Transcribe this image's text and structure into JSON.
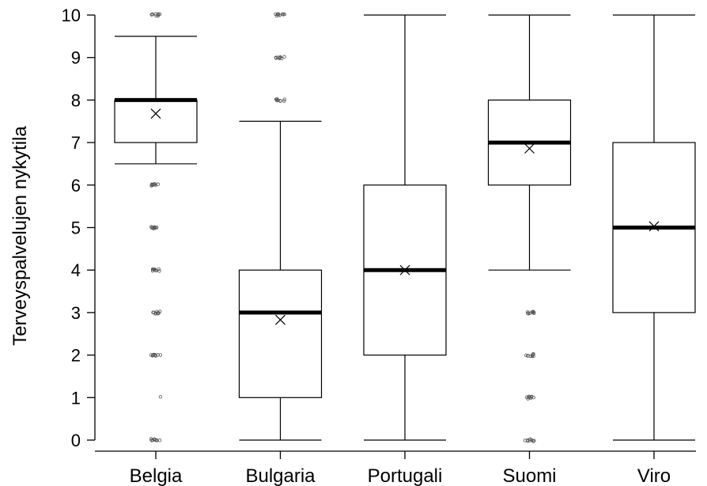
{
  "chart_data": {
    "type": "boxplot",
    "title": "",
    "xlabel": "",
    "ylabel": "Terveyspalvelujen nykytila",
    "ylim": [
      0,
      10
    ],
    "yticks": [
      "0",
      "1",
      "2",
      "3",
      "4",
      "5",
      "6",
      "7",
      "8",
      "9",
      "10"
    ],
    "grid": false,
    "legend": "none",
    "categories": [
      "Belgia",
      "Bulgaria",
      "Portugali",
      "Suomi",
      "Viro"
    ],
    "boxes": [
      {
        "category": "Belgia",
        "whisker_low": 6.5,
        "q1": 7,
        "median": 8,
        "q3": 8,
        "whisker_high": 9.5,
        "mean": 7.68,
        "outliers": [
          0,
          1,
          2,
          3,
          4,
          5,
          6,
          10
        ]
      },
      {
        "category": "Bulgaria",
        "whisker_low": 0,
        "q1": 1,
        "median": 3,
        "q3": 4,
        "whisker_high": 7.5,
        "mean": 2.83,
        "outliers": [
          8,
          9,
          10
        ]
      },
      {
        "category": "Portugali",
        "whisker_low": 0,
        "q1": 2,
        "median": 4,
        "q3": 6,
        "whisker_high": 10,
        "mean": 4.0,
        "outliers": []
      },
      {
        "category": "Suomi",
        "whisker_low": 4,
        "q1": 6,
        "median": 7,
        "q3": 8,
        "whisker_high": 10,
        "mean": 6.86,
        "outliers": [
          0,
          1,
          2,
          3
        ]
      },
      {
        "category": "Viro",
        "whisker_low": 0,
        "q1": 3,
        "median": 5,
        "q3": 7,
        "whisker_high": 10,
        "mean": 5.03,
        "outliers": []
      }
    ],
    "colors": {
      "box": "#ffffff",
      "stroke": "#000000",
      "median": "#000000",
      "outlier": "#555555"
    }
  }
}
